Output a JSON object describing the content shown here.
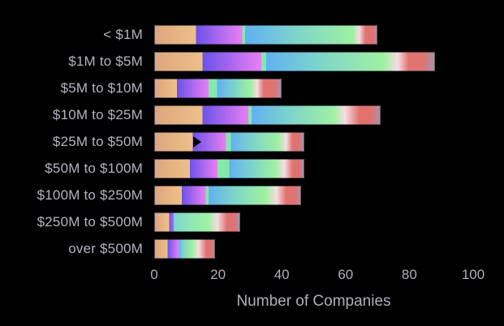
{
  "figure": {
    "background": "#000000",
    "text_color": "#b5b4bf"
  },
  "chart_data": {
    "type": "bar",
    "orientation": "horizontal",
    "stacked": true,
    "title": "",
    "xlabel": "Number of Companies",
    "ylabel": "",
    "xlim": [
      0,
      100
    ],
    "xticks": [
      0,
      20,
      40,
      60,
      80,
      100
    ],
    "grid": false,
    "legend": false,
    "segment_names": [
      "orange",
      "violet",
      "mint",
      "aqua",
      "blush",
      "salmon"
    ],
    "categories": [
      "< $1M",
      "$1M to $5M",
      "$5M to $10M",
      "$10M to $25M",
      "$25M to $50M",
      "$50M to $100M",
      "$100M to $250M",
      "$250M to $500M",
      "over $500M"
    ],
    "totals": [
      70,
      88,
      40,
      71,
      47,
      47,
      46,
      27,
      19
    ],
    "bars": [
      {
        "category": "< $1M",
        "total": 70,
        "segments": [
          13,
          14.5,
          1,
          35,
          2,
          4.5
        ],
        "stops": [
          [
            0,
            "#dda67e"
          ],
          [
            13,
            "#edc089"
          ],
          [
            13,
            "#6c52e9"
          ],
          [
            27.5,
            "#e87ff3"
          ],
          [
            27.5,
            "#85e9a9"
          ],
          [
            28.5,
            "#85e9a9"
          ],
          [
            28.5,
            "#62b0f2"
          ],
          [
            45,
            "#7ed5c9"
          ],
          [
            62.5,
            "#9ff0a0"
          ],
          [
            64.5,
            "#f6dce3"
          ],
          [
            66.5,
            "#e0736f"
          ],
          [
            69,
            "#e0736f"
          ],
          [
            70,
            "#a393b4"
          ]
        ]
      },
      {
        "category": "$1M to $5M",
        "total": 88,
        "segments": [
          15,
          18.5,
          1.5,
          38.5,
          4,
          10.5
        ],
        "stops": [
          [
            0,
            "#dda67e"
          ],
          [
            15,
            "#edc089"
          ],
          [
            15,
            "#6c52e9"
          ],
          [
            33.5,
            "#e87ff3"
          ],
          [
            33.5,
            "#85e9a9"
          ],
          [
            35,
            "#85e9a9"
          ],
          [
            35,
            "#62b0f2"
          ],
          [
            52,
            "#7ed5c9"
          ],
          [
            72,
            "#9ff0a0"
          ],
          [
            76.5,
            "#f6dce3"
          ],
          [
            80,
            "#e0736f"
          ],
          [
            84.5,
            "#e0736f"
          ],
          [
            88,
            "#a393b4"
          ]
        ]
      },
      {
        "category": "$5M to $10M",
        "total": 40,
        "segments": [
          7,
          10,
          3,
          11,
          2.5,
          6.5
        ],
        "stops": [
          [
            0,
            "#dda67e"
          ],
          [
            7,
            "#edc089"
          ],
          [
            7,
            "#6c52e9"
          ],
          [
            17,
            "#e87ff3"
          ],
          [
            17,
            "#85e9a9"
          ],
          [
            19.8,
            "#85e9a9"
          ],
          [
            19.8,
            "#62b0f2"
          ],
          [
            25.5,
            "#7ed5c9"
          ],
          [
            30.5,
            "#9ff0a0"
          ],
          [
            32.5,
            "#f6dce3"
          ],
          [
            34.5,
            "#e0736f"
          ],
          [
            38,
            "#e0736f"
          ],
          [
            40,
            "#a393b4"
          ]
        ]
      },
      {
        "category": "$10M to $25M",
        "total": 71,
        "segments": [
          15,
          14.5,
          1,
          27.5,
          5.5,
          7.5
        ],
        "stops": [
          [
            0,
            "#dda67e"
          ],
          [
            15,
            "#edc089"
          ],
          [
            15,
            "#6c52e9"
          ],
          [
            29.5,
            "#e87ff3"
          ],
          [
            29.5,
            "#85e9a9"
          ],
          [
            30.5,
            "#85e9a9"
          ],
          [
            30.5,
            "#62b0f2"
          ],
          [
            43,
            "#7ed5c9"
          ],
          [
            56.5,
            "#9ff0a0"
          ],
          [
            60,
            "#f6dce3"
          ],
          [
            64.5,
            "#e0736f"
          ],
          [
            68.5,
            "#e0736f"
          ],
          [
            71,
            "#a393b4"
          ]
        ]
      },
      {
        "category": "$25M to $50M",
        "total": 47,
        "segments": [
          12,
          10.5,
          1.5,
          16,
          3,
          4
        ],
        "stops": [
          [
            0,
            "#dda67e"
          ],
          [
            12,
            "#edc089"
          ],
          [
            12,
            "#6c52e9"
          ],
          [
            22.5,
            "#e87ff3"
          ],
          [
            22.5,
            "#85e9a9"
          ],
          [
            24,
            "#85e9a9"
          ],
          [
            24,
            "#62b0f2"
          ],
          [
            31,
            "#7ed5c9"
          ],
          [
            39,
            "#9ff0a0"
          ],
          [
            41.5,
            "#f6dce3"
          ],
          [
            43.5,
            "#e0736f"
          ],
          [
            45.5,
            "#e0736f"
          ],
          [
            47,
            "#a393b4"
          ]
        ]
      },
      {
        "category": "$50M to $100M",
        "total": 47,
        "segments": [
          11,
          9,
          4.5,
          15.5,
          3,
          4
        ],
        "stops": [
          [
            0,
            "#dda67e"
          ],
          [
            11,
            "#edc089"
          ],
          [
            11,
            "#6c52e9"
          ],
          [
            19.8,
            "#e87ff3"
          ],
          [
            19.8,
            "#85e9a9"
          ],
          [
            23.5,
            "#85e9a9"
          ],
          [
            23.5,
            "#62b0f2"
          ],
          [
            31,
            "#7ed5c9"
          ],
          [
            38,
            "#9ff0a0"
          ],
          [
            41,
            "#f6dce3"
          ],
          [
            43.5,
            "#e0736f"
          ],
          [
            45.5,
            "#e0736f"
          ],
          [
            47,
            "#a393b4"
          ]
        ]
      },
      {
        "category": "$100M to $250M",
        "total": 46,
        "segments": [
          8.5,
          7.5,
          1,
          19.5,
          4.5,
          5
        ],
        "stops": [
          [
            0,
            "#dda67e"
          ],
          [
            8.5,
            "#edc089"
          ],
          [
            8.5,
            "#6c52e9"
          ],
          [
            16,
            "#e87ff3"
          ],
          [
            16,
            "#85e9a9"
          ],
          [
            17,
            "#85e9a9"
          ],
          [
            17,
            "#62b0f2"
          ],
          [
            25,
            "#7ed5c9"
          ],
          [
            35,
            "#9ff0a0"
          ],
          [
            38.5,
            "#f6dce3"
          ],
          [
            41.5,
            "#e0736f"
          ],
          [
            44.5,
            "#e0736f"
          ],
          [
            46,
            "#a393b4"
          ]
        ]
      },
      {
        "category": "$250M to $500M",
        "total": 27,
        "segments": [
          4.5,
          1.5,
          0,
          14.5,
          3,
          3.5
        ],
        "stops": [
          [
            0,
            "#dda67e"
          ],
          [
            4.5,
            "#edc089"
          ],
          [
            4.5,
            "#6c52e9"
          ],
          [
            6,
            "#a869ef"
          ],
          [
            6,
            "#7ed5c9"
          ],
          [
            12,
            "#93e8b5"
          ],
          [
            17,
            "#9ff0a0"
          ],
          [
            20,
            "#f6dce3"
          ],
          [
            23,
            "#e0736f"
          ],
          [
            25.5,
            "#e0736f"
          ],
          [
            27,
            "#a393b4"
          ]
        ]
      },
      {
        "category": "over $500M",
        "total": 19,
        "segments": [
          4,
          3.5,
          0,
          7.5,
          2,
          2
        ],
        "stops": [
          [
            0,
            "#dda67e"
          ],
          [
            4,
            "#edc089"
          ],
          [
            4,
            "#6c52e9"
          ],
          [
            7.5,
            "#e87ff3"
          ],
          [
            7.5,
            "#62b0f2"
          ],
          [
            9,
            "#7ed5c9"
          ],
          [
            12,
            "#9ff0a0"
          ],
          [
            14,
            "#f6dce3"
          ],
          [
            16.5,
            "#e0736f"
          ],
          [
            18,
            "#e0736f"
          ],
          [
            19,
            "#a393b4"
          ]
        ]
      }
    ]
  },
  "cursor": {
    "bar_index": 4,
    "x_value": 12,
    "shape": "black right-pointing arrow"
  }
}
